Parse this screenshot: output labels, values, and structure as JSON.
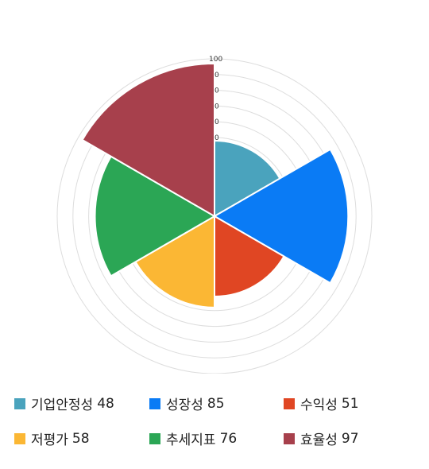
{
  "chart_data": {
    "type": "polar-area",
    "rmax": 100,
    "ticks": [
      "100",
      "0",
      "0",
      "0",
      "0",
      "0"
    ],
    "grid": true,
    "legend_placement": "bottom",
    "series": [
      {
        "name": "기업안정성",
        "value": 48,
        "display_value": "48",
        "color": "#4aa3bd"
      },
      {
        "name": "성장성",
        "value": 85,
        "display_value": "85",
        "color": "#0a7bf5"
      },
      {
        "name": "수익성",
        "value": 51,
        "display_value": "51",
        "color": "#e04623"
      },
      {
        "name": "저평가",
        "value": 58,
        "display_value": "58",
        "color": "#fbb734"
      },
      {
        "name": "추세지표",
        "value": 76,
        "display_value": "76",
        "color": "#2ba655"
      },
      {
        "name": "효율성",
        "value": 97,
        "display_value": "97",
        "color": "#a7404c"
      }
    ]
  }
}
